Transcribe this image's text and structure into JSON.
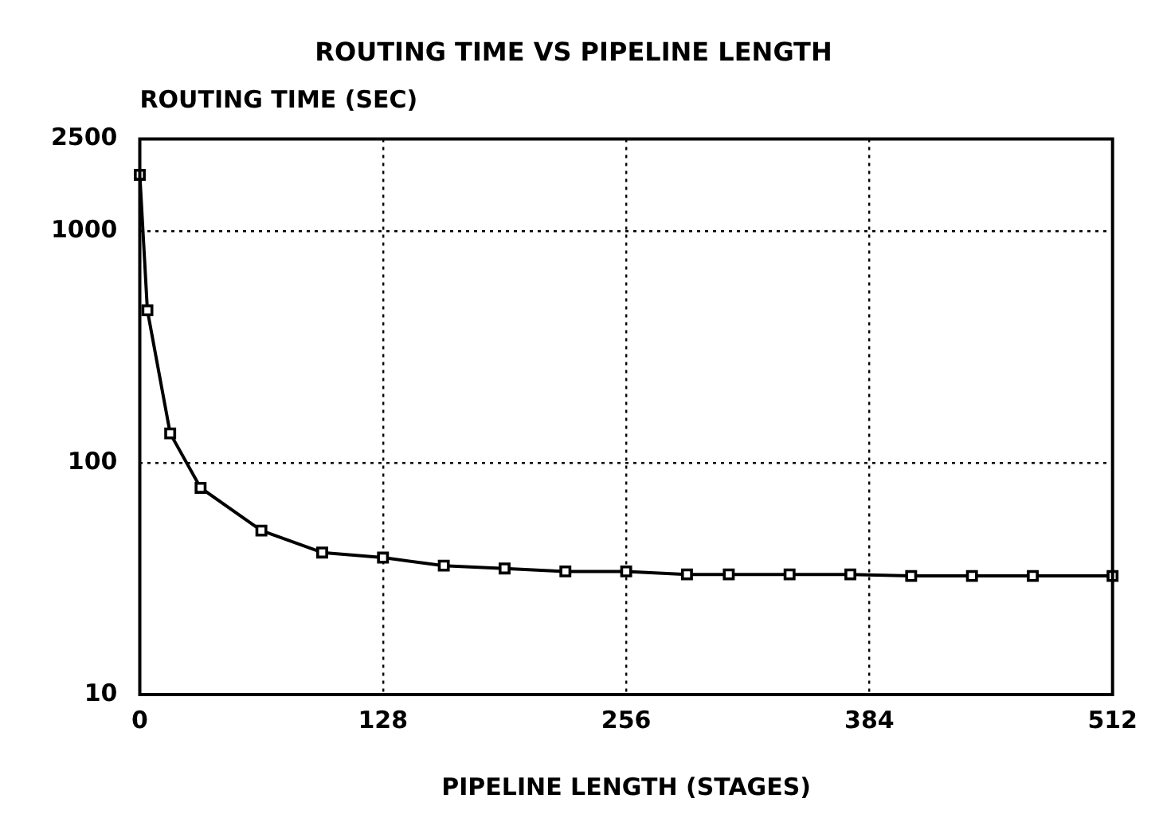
{
  "chart_data": {
    "type": "line",
    "title": "ROUTING TIME VS PIPELINE LENGTH",
    "xlabel": "PIPELINE LENGTH (STAGES)",
    "ylabel": "ROUTING TIME (SEC)",
    "x": [
      0,
      4,
      16,
      32,
      64,
      96,
      128,
      160,
      192,
      224,
      256,
      288,
      310,
      342,
      374,
      406,
      438,
      470,
      512
    ],
    "series": [
      {
        "color": "#000000",
        "values": [
          1750,
          455,
          134,
          78,
          51,
          41,
          39,
          36,
          35,
          34,
          34,
          33,
          33,
          33,
          33,
          32.5,
          32.5,
          32.5,
          32.5
        ]
      }
    ],
    "xlim": [
      0,
      512
    ],
    "xticks": [
      0,
      128,
      256,
      384,
      512
    ],
    "ylim": [
      10,
      2500
    ],
    "yticks": [
      10,
      100,
      1000,
      2500
    ],
    "log": true,
    "grid": true,
    "legend": false,
    "marker": "square",
    "line_style": "solid"
  }
}
